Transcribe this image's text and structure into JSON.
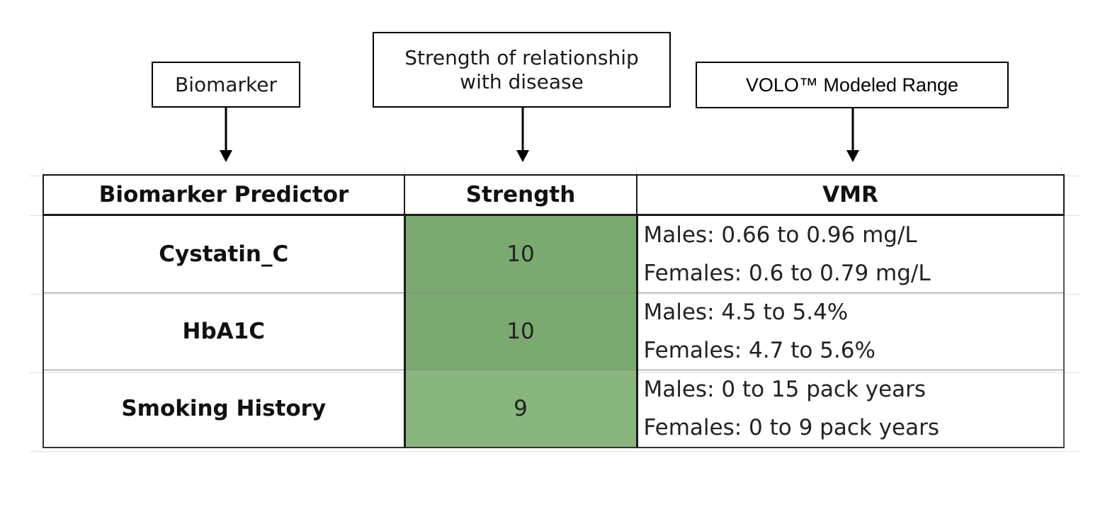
{
  "callouts": {
    "biomarker": "Biomarker",
    "strength": "Strength of relationship\nwith disease",
    "vmr": "VOLO™ Modeled Range"
  },
  "colors": {
    "strength_10": "#7aaa6f",
    "strength_9": "#88b67c",
    "border": "#1a1a1a"
  },
  "table": {
    "headers": [
      "Biomarker Predictor",
      "Strength",
      "VMR"
    ],
    "rows": [
      {
        "predictor": "Cystatin_C",
        "strength": "10",
        "vmr": [
          "Males: 0.66 to 0.96 mg/L",
          "Females: 0.6 to 0.79 mg/L"
        ]
      },
      {
        "predictor": "HbA1C",
        "strength": "10",
        "vmr": [
          "Males: 4.5 to 5.4%",
          "Females: 4.7 to 5.6%"
        ]
      },
      {
        "predictor": "Smoking History",
        "strength": "9",
        "vmr": [
          "Males: 0 to 15 pack years",
          "Females: 0 to 9 pack years"
        ]
      }
    ]
  }
}
